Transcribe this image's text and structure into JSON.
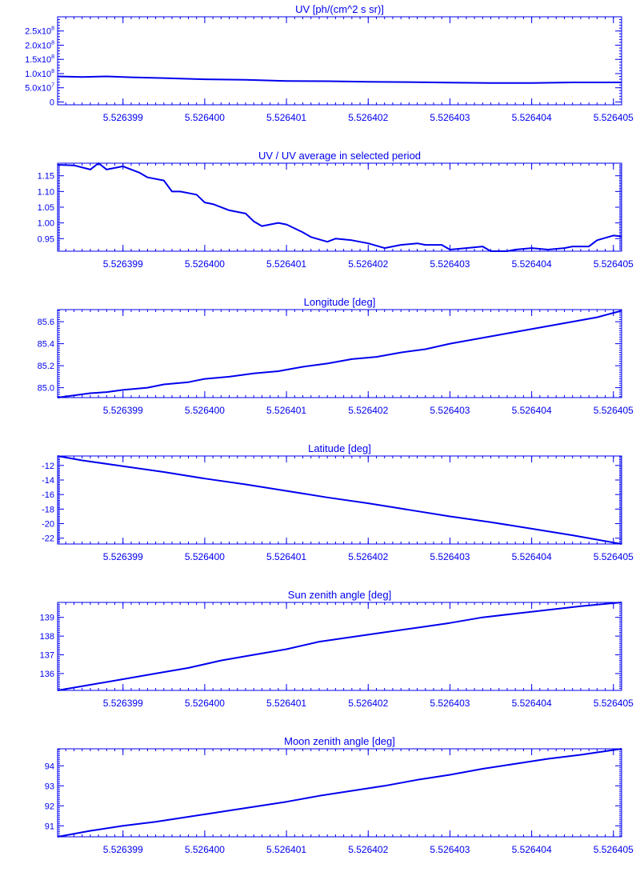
{
  "style": {
    "line_color": "#0000ee",
    "background": "#ffffff"
  },
  "chart_data": [
    {
      "type": "line",
      "title": "UV [ph/(cm^2 s sr)]",
      "xlim": [
        5.5263982,
        5.5264051
      ],
      "ylim": [
        -10000000.0,
        300000000.0
      ],
      "xticks": [
        5.526399,
        5.5264,
        5.526401,
        5.526402,
        5.526403,
        5.526404,
        5.526405
      ],
      "xtick_labels": [
        "5.526399",
        "5.526400",
        "5.526401",
        "5.526402",
        "5.526403",
        "5.526404",
        "5.526405"
      ],
      "yticks": [
        0,
        50000000.0,
        100000000.0,
        150000000.0,
        200000000.0,
        250000000.0
      ],
      "ytick_labels": [
        {
          "text": "0"
        },
        {
          "text": "5.0x10",
          "exp": "7"
        },
        {
          "text": "1.0x10",
          "exp": "8"
        },
        {
          "text": "1.5x10",
          "exp": "8"
        },
        {
          "text": "2.0x10",
          "exp": "8"
        },
        {
          "text": "2.5x10",
          "exp": "8"
        }
      ],
      "x": [
        5.5263982,
        5.5263985,
        5.5263988,
        5.5263991,
        5.5263995,
        5.5264,
        5.5264005,
        5.526401,
        5.5264015,
        5.526402,
        5.5264025,
        5.526403,
        5.5264035,
        5.526404,
        5.5264045,
        5.5264051
      ],
      "y": [
        90000000.0,
        88000000.0,
        90000000.0,
        87000000.0,
        84000000.0,
        80000000.0,
        78000000.0,
        74000000.0,
        73000000.0,
        71000000.0,
        70000000.0,
        68000000.0,
        67000000.0,
        67000000.0,
        69000000.0,
        69000000.0
      ]
    },
    {
      "type": "line",
      "title": "UV / UV average in selected period",
      "xlim": [
        5.5263982,
        5.5264051
      ],
      "ylim": [
        0.91,
        1.19
      ],
      "xticks": [
        5.526399,
        5.5264,
        5.526401,
        5.526402,
        5.526403,
        5.526404,
        5.526405
      ],
      "xtick_labels": [
        "5.526399",
        "5.526400",
        "5.526401",
        "5.526402",
        "5.526403",
        "5.526404",
        "5.526405"
      ],
      "yticks": [
        0.95,
        1.0,
        1.05,
        1.1,
        1.15
      ],
      "ytick_labels": [
        {
          "text": "0.95"
        },
        {
          "text": "1.00"
        },
        {
          "text": "1.05"
        },
        {
          "text": "1.10"
        },
        {
          "text": "1.15"
        }
      ],
      "x": [
        5.5263982,
        5.5263984,
        5.5263986,
        5.5263987,
        5.5263988,
        5.526399,
        5.5263992,
        5.5263993,
        5.5263995,
        5.5263996,
        5.5263997,
        5.5263999,
        5.5264,
        5.5264001,
        5.5264003,
        5.5264005,
        5.5264006,
        5.5264007,
        5.5264009,
        5.526401,
        5.5264012,
        5.5264013,
        5.5264015,
        5.5264016,
        5.5264018,
        5.526402,
        5.5264022,
        5.5264024,
        5.5264026,
        5.5264027,
        5.5264029,
        5.526403,
        5.5264032,
        5.5264034,
        5.5264035,
        5.5264037,
        5.5264038,
        5.526404,
        5.5264042,
        5.5264044,
        5.5264045,
        5.5264047,
        5.5264048,
        5.526405,
        5.5264051
      ],
      "y": [
        1.185,
        1.183,
        1.17,
        1.19,
        1.17,
        1.18,
        1.16,
        1.145,
        1.135,
        1.1,
        1.1,
        1.09,
        1.065,
        1.06,
        1.04,
        1.03,
        1.005,
        0.99,
        1.0,
        0.995,
        0.97,
        0.955,
        0.94,
        0.95,
        0.945,
        0.935,
        0.92,
        0.93,
        0.935,
        0.93,
        0.93,
        0.915,
        0.92,
        0.925,
        0.91,
        0.91,
        0.915,
        0.92,
        0.915,
        0.92,
        0.925,
        0.925,
        0.945,
        0.96,
        0.957
      ]
    },
    {
      "type": "line",
      "title": "Longitude [deg]",
      "xlim": [
        5.5263982,
        5.5264051
      ],
      "ylim": [
        84.91,
        85.71
      ],
      "xticks": [
        5.526399,
        5.5264,
        5.526401,
        5.526402,
        5.526403,
        5.526404,
        5.526405
      ],
      "xtick_labels": [
        "5.526399",
        "5.526400",
        "5.526401",
        "5.526402",
        "5.526403",
        "5.526404",
        "5.526405"
      ],
      "yticks": [
        85.0,
        85.2,
        85.4,
        85.6
      ],
      "ytick_labels": [
        {
          "text": "85.0"
        },
        {
          "text": "85.2"
        },
        {
          "text": "85.4"
        },
        {
          "text": "85.6"
        }
      ],
      "x": [
        5.5263982,
        5.5263984,
        5.5263986,
        5.5263988,
        5.526399,
        5.5263993,
        5.5263995,
        5.5263998,
        5.5264,
        5.5264003,
        5.5264006,
        5.5264009,
        5.5264012,
        5.5264015,
        5.5264018,
        5.5264021,
        5.5264024,
        5.5264027,
        5.526403,
        5.5264033,
        5.5264036,
        5.5264039,
        5.5264042,
        5.5264045,
        5.5264048,
        5.5264051
      ],
      "y": [
        84.91,
        84.93,
        84.95,
        84.96,
        84.98,
        85.0,
        85.03,
        85.05,
        85.08,
        85.1,
        85.13,
        85.15,
        85.19,
        85.22,
        85.26,
        85.28,
        85.32,
        85.35,
        85.4,
        85.44,
        85.48,
        85.52,
        85.56,
        85.6,
        85.64,
        85.7
      ]
    },
    {
      "type": "line",
      "title": "Latitude [deg]",
      "xlim": [
        5.5263982,
        5.5264051
      ],
      "ylim": [
        -22.8,
        -10.7
      ],
      "xticks": [
        5.526399,
        5.5264,
        5.526401,
        5.526402,
        5.526403,
        5.526404,
        5.526405
      ],
      "xtick_labels": [
        "5.526399",
        "5.526400",
        "5.526401",
        "5.526402",
        "5.526403",
        "5.526404",
        "5.526405"
      ],
      "yticks": [
        -22,
        -20,
        -18,
        -16,
        -14,
        -12
      ],
      "ytick_labels": [
        {
          "text": "-22"
        },
        {
          "text": "-20"
        },
        {
          "text": "-18"
        },
        {
          "text": "-16"
        },
        {
          "text": "-14"
        },
        {
          "text": "-12"
        }
      ],
      "x": [
        5.5263982,
        5.5263985,
        5.526399,
        5.5263995,
        5.5264,
        5.5264005,
        5.526401,
        5.5264015,
        5.526402,
        5.5264025,
        5.526403,
        5.5264035,
        5.526404,
        5.5264045,
        5.5264051
      ],
      "y": [
        -10.7,
        -11.3,
        -12.1,
        -12.9,
        -13.8,
        -14.6,
        -15.5,
        -16.4,
        -17.2,
        -18.1,
        -19.0,
        -19.8,
        -20.7,
        -21.6,
        -22.8
      ]
    },
    {
      "type": "line",
      "title": "Sun zenith angle [deg]",
      "xlim": [
        5.5263982,
        5.5264051
      ],
      "ylim": [
        135.1,
        139.8
      ],
      "xticks": [
        5.526399,
        5.5264,
        5.526401,
        5.526402,
        5.526403,
        5.526404,
        5.526405
      ],
      "xtick_labels": [
        "5.526399",
        "5.526400",
        "5.526401",
        "5.526402",
        "5.526403",
        "5.526404",
        "5.526405"
      ],
      "yticks": [
        136,
        137,
        138,
        139
      ],
      "ytick_labels": [
        {
          "text": "136"
        },
        {
          "text": "137"
        },
        {
          "text": "138"
        },
        {
          "text": "139"
        }
      ],
      "x": [
        5.5263982,
        5.5263986,
        5.526399,
        5.5263994,
        5.5263998,
        5.5264002,
        5.5264006,
        5.526401,
        5.5264014,
        5.5264018,
        5.5264022,
        5.5264026,
        5.526403,
        5.5264034,
        5.5264038,
        5.5264042,
        5.5264046,
        5.5264051
      ],
      "y": [
        135.1,
        135.4,
        135.7,
        136.0,
        136.3,
        136.7,
        137.0,
        137.3,
        137.7,
        137.95,
        138.2,
        138.45,
        138.7,
        139.0,
        139.2,
        139.4,
        139.6,
        139.8
      ]
    },
    {
      "type": "line",
      "title": "Moon zenith angle [deg]",
      "xlim": [
        5.5263982,
        5.5264051
      ],
      "ylim": [
        90.45,
        94.85
      ],
      "xticks": [
        5.526399,
        5.5264,
        5.526401,
        5.526402,
        5.526403,
        5.526404,
        5.526405
      ],
      "xtick_labels": [
        "5.526399",
        "5.526400",
        "5.526401",
        "5.526402",
        "5.526403",
        "5.526404",
        "5.526405"
      ],
      "yticks": [
        91,
        92,
        93,
        94
      ],
      "ytick_labels": [
        {
          "text": "91"
        },
        {
          "text": "92"
        },
        {
          "text": "93"
        },
        {
          "text": "94"
        }
      ],
      "x": [
        5.5263982,
        5.5263986,
        5.526399,
        5.5263994,
        5.5263998,
        5.5264002,
        5.5264006,
        5.526401,
        5.5264014,
        5.5264018,
        5.5264022,
        5.5264026,
        5.526403,
        5.5264034,
        5.5264038,
        5.5264042,
        5.5264046,
        5.5264051
      ],
      "y": [
        90.45,
        90.75,
        91.0,
        91.2,
        91.45,
        91.7,
        91.95,
        92.2,
        92.5,
        92.75,
        93.0,
        93.3,
        93.55,
        93.85,
        94.1,
        94.35,
        94.55,
        94.85
      ]
    }
  ]
}
